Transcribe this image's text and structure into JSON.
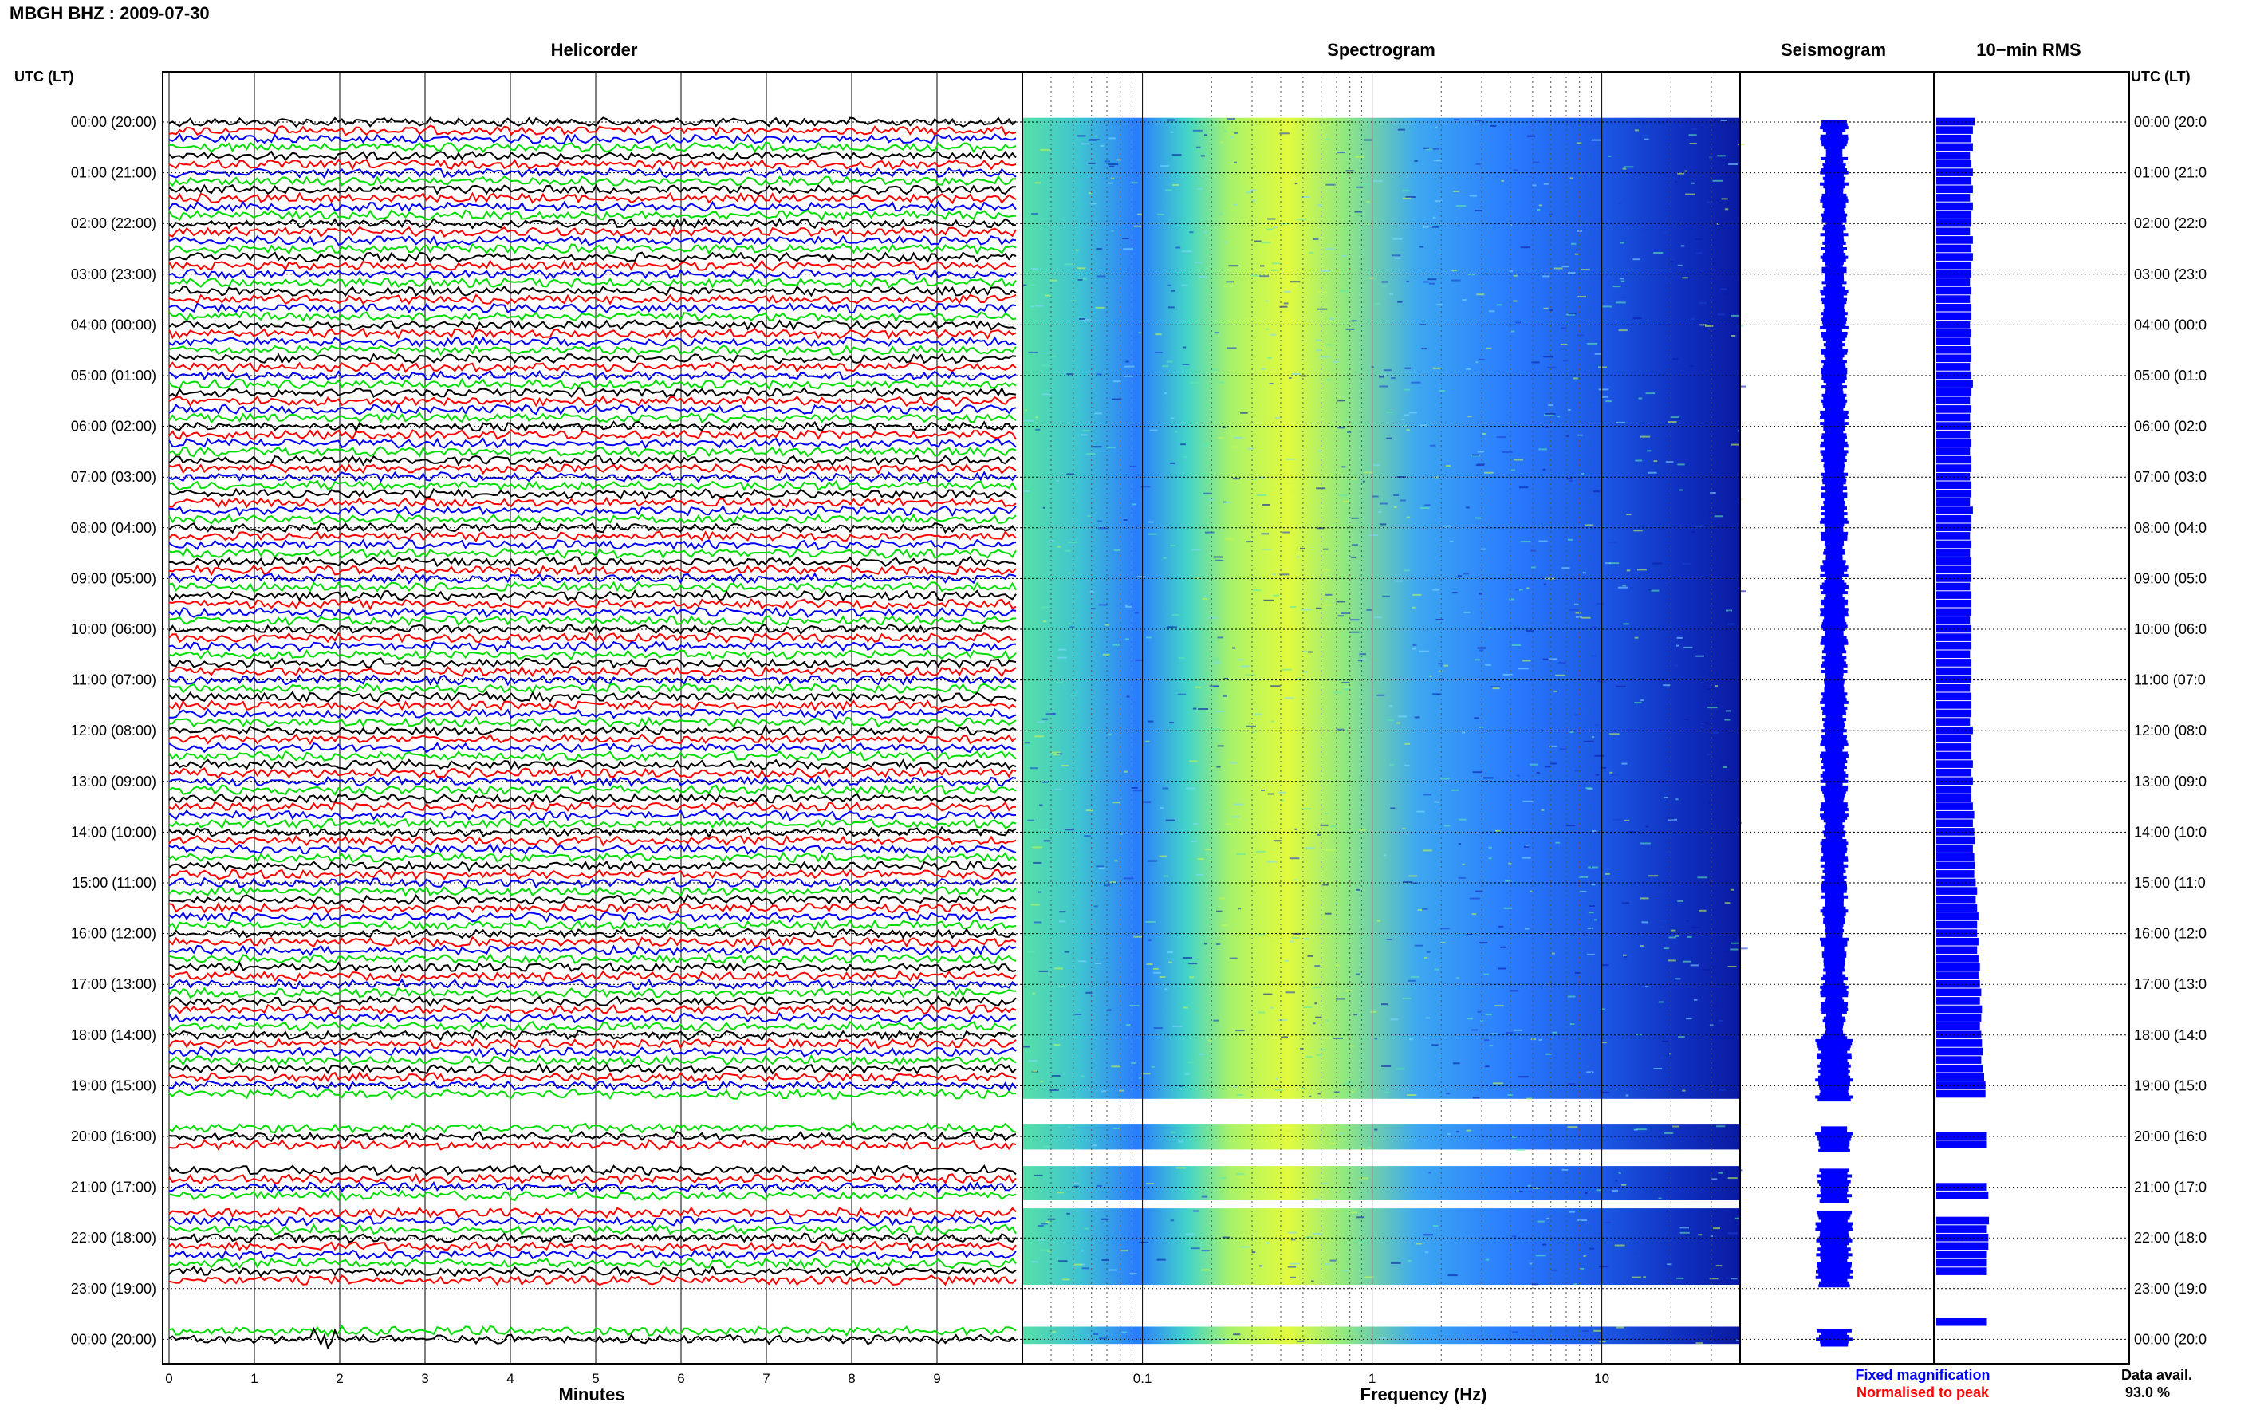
{
  "header": {
    "station_title": "MBGH BHZ : 2009-07-30",
    "time_axis_label": "UTC (LT)"
  },
  "panels": {
    "helicorder": "Helicorder",
    "spectrogram": "Spectrogram",
    "seismogram": "Seismogram",
    "rms": "10−min RMS"
  },
  "hour_labels": [
    "00:00 (20:00)",
    "01:00 (21:00)",
    "02:00 (22:00)",
    "03:00 (23:00)",
    "04:00 (00:00)",
    "05:00 (01:00)",
    "06:00 (02:00)",
    "07:00 (03:00)",
    "08:00 (04:00)",
    "09:00 (05:00)",
    "10:00 (06:00)",
    "11:00 (07:00)",
    "12:00 (08:00)",
    "13:00 (09:00)",
    "14:00 (10:00)",
    "15:00 (11:00)",
    "16:00 (12:00)",
    "17:00 (13:00)",
    "18:00 (14:00)",
    "19:00 (15:00)",
    "20:00 (16:00)",
    "21:00 (17:00)",
    "22:00 (18:00)",
    "23:00 (19:00)",
    "00:00 (20:00)"
  ],
  "right_hour_labels": [
    "00:00 (20:0",
    "01:00 (21:0",
    "02:00 (22:0",
    "03:00 (23:0",
    "04:00 (00:0",
    "05:00 (01:0",
    "06:00 (02:0",
    "07:00 (03:0",
    "08:00 (04:0",
    "09:00 (05:0",
    "10:00 (06:0",
    "11:00 (07:0",
    "12:00 (08:0",
    "13:00 (09:0",
    "14:00 (10:0",
    "15:00 (11:0",
    "16:00 (12:0",
    "17:00 (13:0",
    "18:00 (14:0",
    "19:00 (15:0",
    "20:00 (16:0",
    "21:00 (17:0",
    "22:00 (18:0",
    "23:00 (19:0",
    "00:00 (20:0"
  ],
  "footer": {
    "minutes_label": "Minutes",
    "frequency_label": "Frequency (Hz)",
    "legend_fixed": "Fixed magnification",
    "legend_normalised": "Normalised to peak",
    "data_avail_label": "Data avail.",
    "data_avail_value": "93.0 %"
  },
  "colors": {
    "trace_cycle": [
      "#000000",
      "#ff0000",
      "#0000ff",
      "#00dd00"
    ],
    "fixed_magnification": "#0000ff",
    "normalised_to_peak": "#ff0000",
    "rms_bar": "#0000ff",
    "seismogram": "#0000ff"
  },
  "chart_data": [
    {
      "type": "line",
      "title": "Helicorder",
      "xlabel": "Minutes",
      "x_ticks": [
        "0",
        "1",
        "2",
        "3",
        "4",
        "5",
        "6",
        "7",
        "8",
        "9"
      ],
      "xlim": [
        0,
        10
      ],
      "rows_per_hour": 6,
      "row_duration_minutes": 10,
      "y_ticks": "hour_labels",
      "gaps": [
        {
          "from_utc": "19:20",
          "to_utc": "19:50"
        },
        {
          "from_utc": "20:20",
          "to_utc": "20:40"
        },
        {
          "from_utc": "21:20",
          "to_utc": "21:30"
        },
        {
          "from_utc": "23:00",
          "to_utc": "23:50"
        }
      ]
    },
    {
      "type": "heatmap",
      "title": "Spectrogram",
      "xlabel": "Frequency (Hz)",
      "x_scale": "log",
      "xlim": [
        0.03,
        40
      ],
      "x_ticks": [
        "0.1",
        "1",
        "10"
      ],
      "peak_frequency_hz": 0.3,
      "colormap": [
        "#0000cc",
        "#1a5cff",
        "#3fa9ff",
        "#7fe6c8",
        "#e6ff40"
      ]
    },
    {
      "type": "line",
      "title": "Seismogram",
      "note": "Fixed magnification and normalised-to-peak traces per 10-min row"
    },
    {
      "type": "bar",
      "title": "10−min RMS",
      "orientation": "horizontal",
      "values_rel": [
        0.55,
        0.52,
        0.5,
        0.52,
        0.48,
        0.5,
        0.52,
        0.5,
        0.52,
        0.48,
        0.52,
        0.5,
        0.5,
        0.48,
        0.52,
        0.5,
        0.52,
        0.5,
        0.5,
        0.48,
        0.5,
        0.48,
        0.5,
        0.5,
        0.48,
        0.5,
        0.48,
        0.5,
        0.5,
        0.48,
        0.5,
        0.52,
        0.5,
        0.48,
        0.5,
        0.48,
        0.5,
        0.48,
        0.5,
        0.48,
        0.5,
        0.5,
        0.48,
        0.5,
        0.5,
        0.48,
        0.52,
        0.5,
        0.5,
        0.48,
        0.5,
        0.48,
        0.5,
        0.5,
        0.5,
        0.48,
        0.5,
        0.5,
        0.5,
        0.48,
        0.5,
        0.5,
        0.5,
        0.48,
        0.5,
        0.5,
        0.5,
        0.48,
        0.5,
        0.5,
        0.5,
        0.48,
        0.52,
        0.5,
        0.5,
        0.5,
        0.52,
        0.5,
        0.52,
        0.5,
        0.5,
        0.52,
        0.54,
        0.52,
        0.54,
        0.55,
        0.52,
        0.54,
        0.55,
        0.54,
        0.56,
        0.58,
        0.56,
        0.58,
        0.6,
        0.58,
        0.58,
        0.6,
        0.58,
        0.6,
        0.62,
        0.6,
        0.62,
        0.64,
        0.62,
        0.65,
        0.64,
        0.62,
        0.64,
        0.65,
        0.66,
        0.64,
        0.66,
        0.68,
        0.7,
        0.7,
        0.0,
        0.0,
        0.0,
        0.0,
        0.72,
        0.72,
        0.0,
        0.0,
        0.0,
        0.0,
        0.72,
        0.74,
        0.0,
        0.0,
        0.75,
        0.72,
        0.74,
        0.74,
        0.72,
        0.72,
        0.72,
        0.0,
        0.0,
        0.0,
        0.0,
        0.0,
        0.72,
        0.0,
        0.0,
        0.0,
        0.0,
        0.0
      ]
    }
  ]
}
